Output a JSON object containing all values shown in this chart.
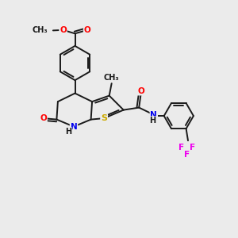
{
  "background_color": "#ebebeb",
  "bond_color": "#1a1a1a",
  "atom_colors": {
    "O": "#ff0000",
    "N": "#0000ee",
    "S": "#ccaa00",
    "F": "#ee00ee",
    "C": "#1a1a1a",
    "H": "#1a1a1a"
  },
  "figsize": [
    3.0,
    3.0
  ],
  "dpi": 100
}
